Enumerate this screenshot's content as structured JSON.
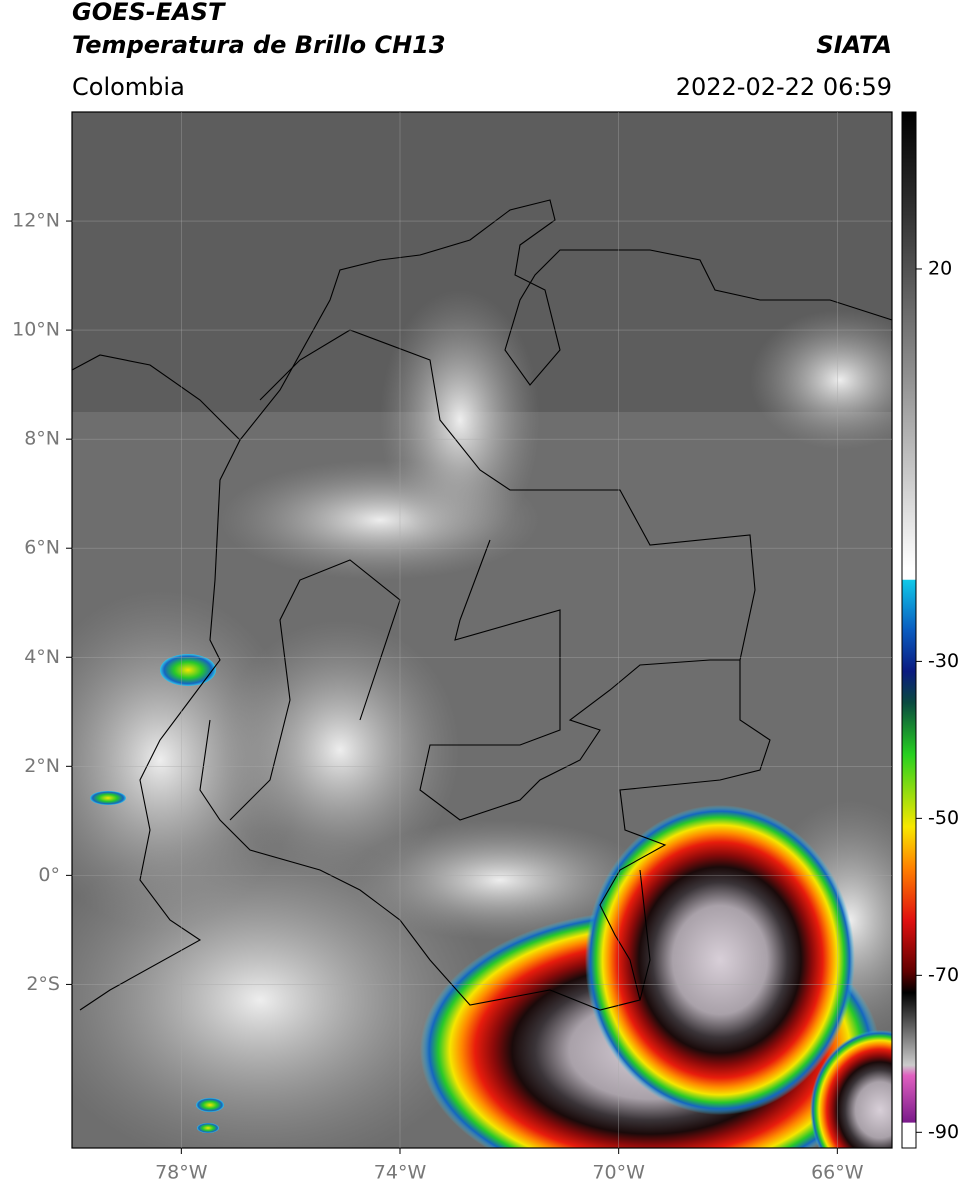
{
  "chart_data": {
    "type": "map",
    "title": "GOES-EAST",
    "subtitle": "Temperatura de Brillo CH13",
    "source": "SIATA",
    "region": "Colombia",
    "datetime": "2022-02-22 06:59",
    "xlim": [
      -80,
      -65
    ],
    "ylim": [
      -5,
      14
    ],
    "xticks": [
      {
        "value": -78,
        "label": "78°W"
      },
      {
        "value": -74,
        "label": "74°W"
      },
      {
        "value": -70,
        "label": "70°W"
      },
      {
        "value": -66,
        "label": "66°W"
      }
    ],
    "yticks": [
      {
        "value": 12,
        "label": "12°N"
      },
      {
        "value": 10,
        "label": "10°N"
      },
      {
        "value": 8,
        "label": "8°N"
      },
      {
        "value": 6,
        "label": "6°N"
      },
      {
        "value": 4,
        "label": "4°N"
      },
      {
        "value": 2,
        "label": "2°N"
      },
      {
        "value": 0,
        "label": "0°"
      },
      {
        "value": -2,
        "label": "2°S"
      }
    ],
    "grid": true,
    "colorbar": {
      "lim": [
        -92,
        40
      ],
      "ticks": [
        20,
        -30,
        -50,
        -70,
        -90
      ]
    }
  }
}
